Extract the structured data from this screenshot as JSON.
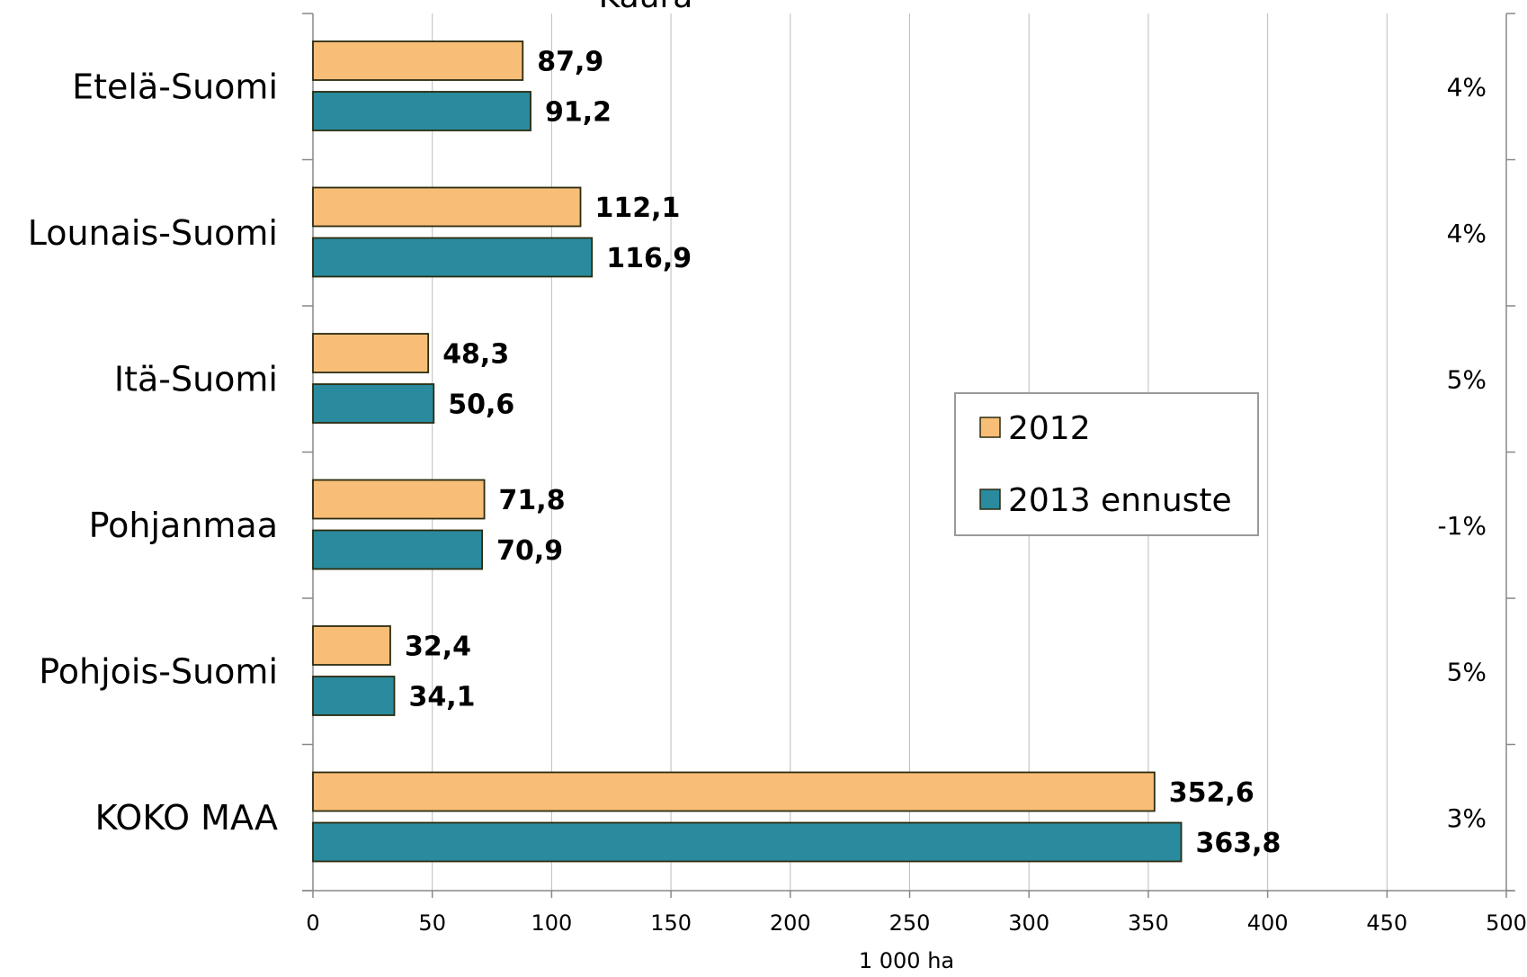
{
  "chart_data": {
    "type": "bar",
    "orientation": "horizontal",
    "title": "Kaura",
    "xlabel": "1 000 ha",
    "ylabel": "",
    "xlim": [
      0,
      500
    ],
    "x_ticks": [
      "0",
      "50",
      "100",
      "150",
      "200",
      "250",
      "300",
      "350",
      "400",
      "450",
      "500"
    ],
    "grid": "vertical",
    "legend_position": "center-right",
    "categories": [
      "Etelä-Suomi",
      "Lounais-Suomi",
      "Itä-Suomi",
      "Pohjanmaa",
      "Pohjois-Suomi",
      "KOKO MAA"
    ],
    "series": [
      {
        "name": "2012",
        "color": "#F8BE78",
        "values": [
          87.9,
          112.1,
          48.3,
          71.8,
          32.4,
          352.6
        ],
        "labels": [
          "87,9",
          "112,1",
          "48,3",
          "71,8",
          "32,4",
          "352,6"
        ]
      },
      {
        "name": "2013 ennuste",
        "color": "#2A8A9E",
        "values": [
          91.2,
          116.9,
          50.6,
          70.9,
          34.1,
          363.8
        ],
        "labels": [
          "91,2",
          "116,9",
          "50,6",
          "70,9",
          "34,1",
          "363,8"
        ]
      }
    ],
    "change_labels": [
      "4%",
      "4%",
      "5%",
      "-1%",
      "5%",
      "3%"
    ]
  }
}
